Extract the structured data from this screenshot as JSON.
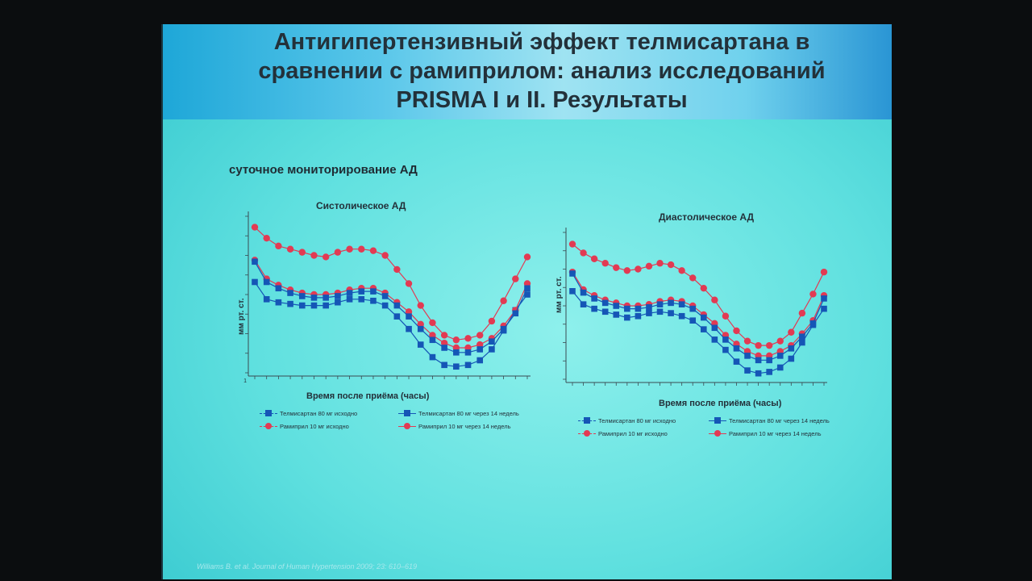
{
  "slide": {
    "title_lines": [
      "Антигипертензивный эффект телмисартана в",
      "сравнении с рамиприлом: анализ исследований",
      "PRISMA I и II. Результаты"
    ],
    "subtitle": "суточное мониторирование АД",
    "citation": "Williams B. et al. Journal of Human Hypertension 2009; 23: 610–619",
    "colors": {
      "telmisartan": "#1556b6",
      "ramipril": "#e23a53"
    }
  },
  "charts_meta": [
    {
      "title": "Систолическое АД",
      "ylabel": "мм рт. ст.",
      "xlabel": "Время после приёма (часы)"
    },
    {
      "title": "Диастолическое АД",
      "ylabel": "мм рт. ст.",
      "xlabel": "Время после приёма (часы)"
    }
  ],
  "legend": [
    {
      "telmi_base": "Телмисартан 80 мг исходно",
      "telmi_14": "Телмисартан 80 мг через 14 недель",
      "rami_base": "Рамиприл 10 мг исходно",
      "rami_14": "Рамиприл 10 мг через 14 недель"
    },
    {
      "telmi_base": "Телмисартан 80 мг исходно",
      "telmi_14": "Телмисартан 80 мг через 14 недель",
      "rami_base": "Рамиприл 10 мг исходно",
      "rami_14": "Рамиприл 10 мг через 14 недель"
    }
  ],
  "chart_data": [
    {
      "type": "line",
      "title": "Систолическое АД",
      "xlabel": "Время после приёма (часы)",
      "ylabel": "мм рт. ст.",
      "x_tick_labels": [
        "1"
      ],
      "x": [
        1,
        2,
        3,
        4,
        5,
        6,
        7,
        8,
        9,
        10,
        11,
        12,
        13,
        14,
        15,
        16,
        17,
        18,
        19,
        20,
        21,
        22,
        23,
        24
      ],
      "series": [
        {
          "name": "Рамиприл 10 мг исходно",
          "marker": "circle",
          "values": [
            0.93,
            0.86,
            0.81,
            0.79,
            0.77,
            0.75,
            0.74,
            0.77,
            0.79,
            0.79,
            0.78,
            0.75,
            0.66,
            0.57,
            0.43,
            0.32,
            0.24,
            0.21,
            0.22,
            0.24,
            0.33,
            0.46,
            0.6,
            0.74
          ]
        },
        {
          "name": "Телмисартан 80 мг исходно",
          "marker": "square",
          "values": [
            0.58,
            0.47,
            0.45,
            0.44,
            0.43,
            0.43,
            0.43,
            0.45,
            0.47,
            0.47,
            0.46,
            0.43,
            0.36,
            0.28,
            0.18,
            0.1,
            0.05,
            0.04,
            0.05,
            0.08,
            0.15,
            0.27,
            0.4,
            0.5
          ]
        },
        {
          "name": "Рамиприл 10 мг через 14 недель",
          "marker": "circle",
          "values": [
            0.72,
            0.6,
            0.56,
            0.53,
            0.51,
            0.5,
            0.5,
            0.51,
            0.53,
            0.54,
            0.54,
            0.51,
            0.45,
            0.39,
            0.31,
            0.24,
            0.19,
            0.16,
            0.16,
            0.18,
            0.22,
            0.3,
            0.4,
            0.57
          ]
        },
        {
          "name": "Телмисартан 80 мг через 14 недель",
          "marker": "square",
          "values": [
            0.71,
            0.58,
            0.54,
            0.51,
            0.49,
            0.48,
            0.48,
            0.49,
            0.51,
            0.52,
            0.52,
            0.49,
            0.43,
            0.36,
            0.28,
            0.21,
            0.16,
            0.13,
            0.13,
            0.15,
            0.2,
            0.28,
            0.38,
            0.54
          ]
        }
      ]
    },
    {
      "type": "line",
      "title": "Диастолическое АД",
      "xlabel": "Время после приёма (часы)",
      "ylabel": "мм рт. ст.",
      "x": [
        1,
        2,
        3,
        4,
        5,
        6,
        7,
        8,
        9,
        10,
        11,
        12,
        13,
        14,
        15,
        16,
        17,
        18,
        19,
        20,
        21,
        22,
        23,
        24
      ],
      "series": [
        {
          "name": "Рамиприл 10 мг исходно",
          "marker": "circle",
          "values": [
            0.92,
            0.86,
            0.82,
            0.79,
            0.76,
            0.74,
            0.75,
            0.77,
            0.79,
            0.78,
            0.74,
            0.69,
            0.62,
            0.54,
            0.43,
            0.33,
            0.26,
            0.23,
            0.23,
            0.26,
            0.32,
            0.45,
            0.58,
            0.73
          ]
        },
        {
          "name": "Телмисартан 80 мг исходно",
          "marker": "square",
          "values": [
            0.6,
            0.51,
            0.48,
            0.46,
            0.44,
            0.42,
            0.43,
            0.45,
            0.46,
            0.45,
            0.43,
            0.4,
            0.34,
            0.27,
            0.2,
            0.12,
            0.06,
            0.04,
            0.05,
            0.08,
            0.14,
            0.25,
            0.37,
            0.48
          ]
        },
        {
          "name": "Рамиприл 10 мг через 14 недель",
          "marker": "circle",
          "values": [
            0.73,
            0.61,
            0.57,
            0.54,
            0.52,
            0.5,
            0.5,
            0.51,
            0.53,
            0.54,
            0.53,
            0.5,
            0.44,
            0.38,
            0.3,
            0.24,
            0.19,
            0.16,
            0.16,
            0.19,
            0.23,
            0.31,
            0.4,
            0.57
          ]
        },
        {
          "name": "Телмисартан 80 мг через 14 недель",
          "marker": "square",
          "values": [
            0.72,
            0.59,
            0.55,
            0.52,
            0.5,
            0.48,
            0.48,
            0.49,
            0.51,
            0.52,
            0.51,
            0.48,
            0.42,
            0.35,
            0.27,
            0.21,
            0.16,
            0.13,
            0.13,
            0.16,
            0.21,
            0.29,
            0.38,
            0.55
          ]
        }
      ]
    }
  ]
}
